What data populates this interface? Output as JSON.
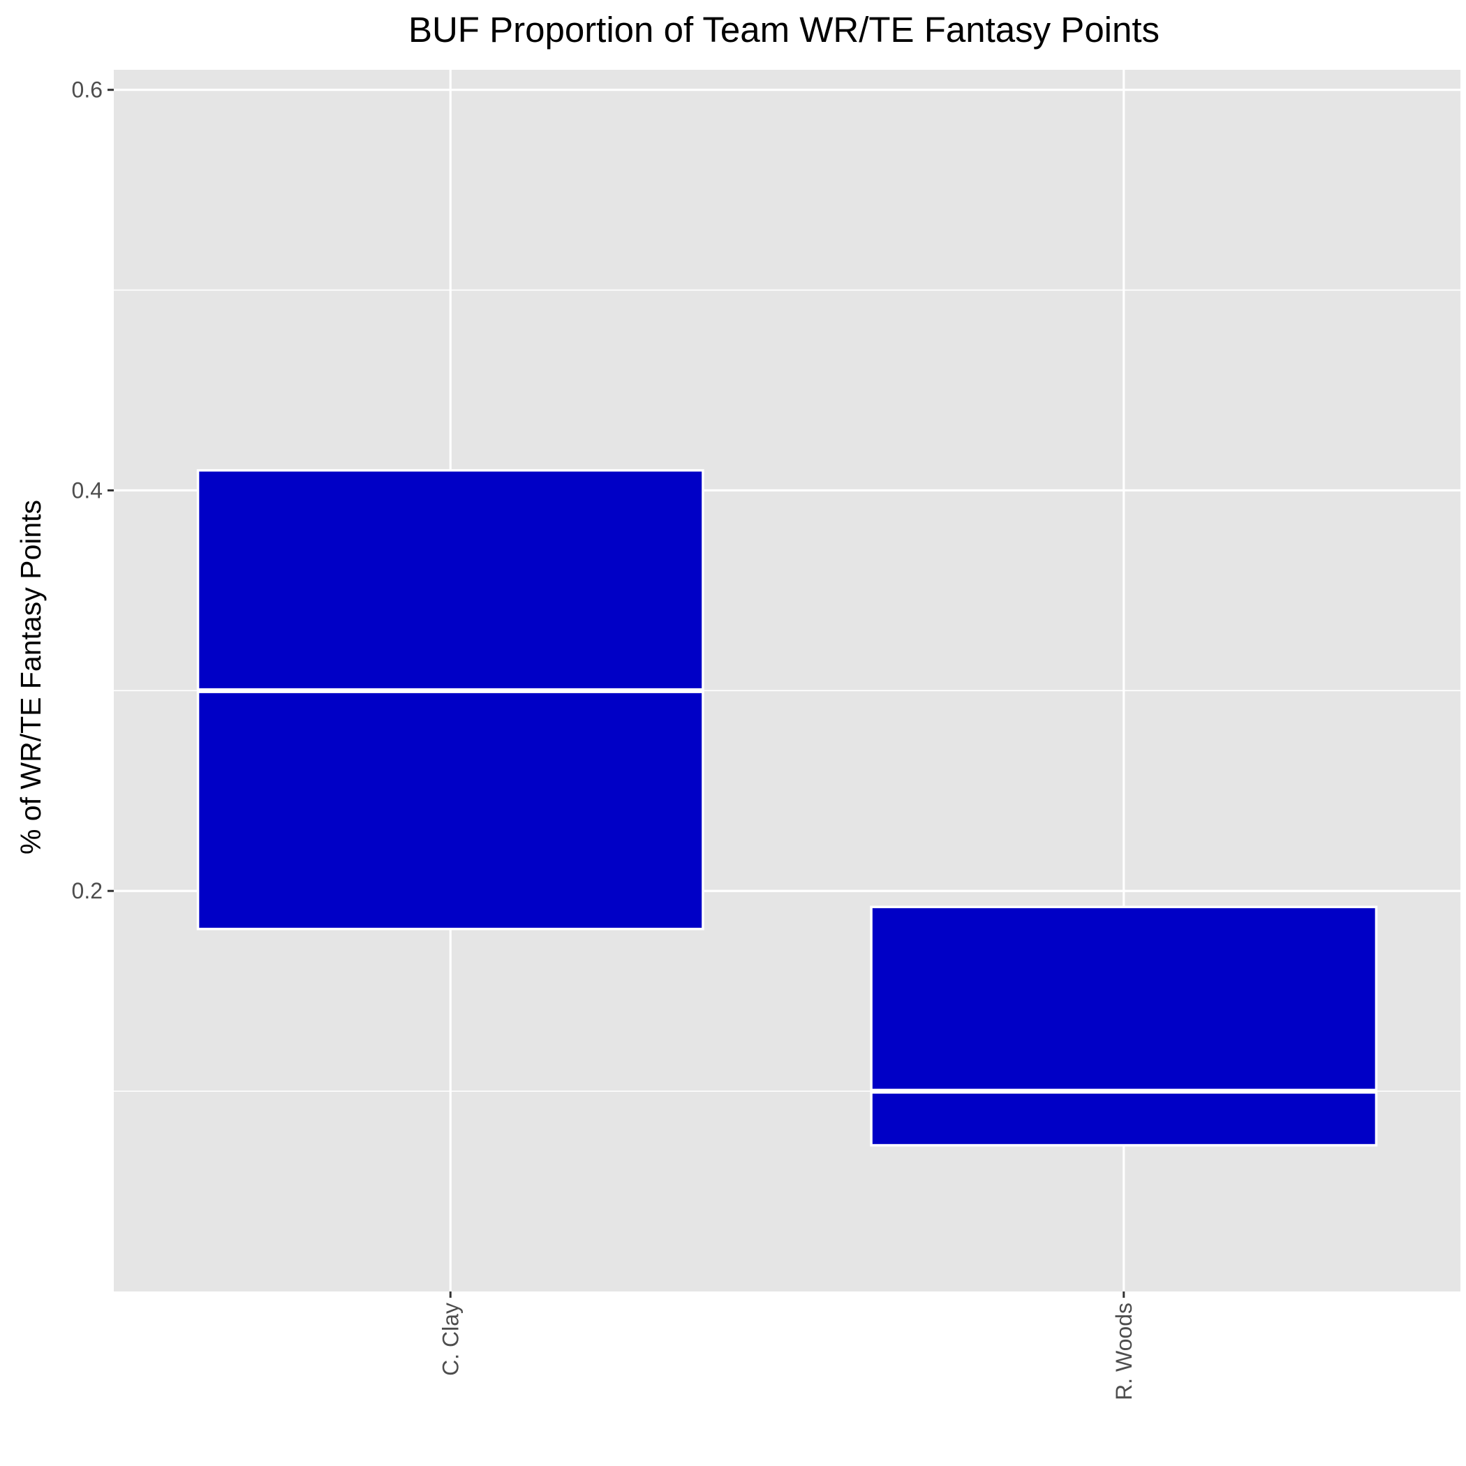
{
  "chart_data": {
    "type": "boxplot",
    "title": "BUF Proportion of Team WR/TE Fantasy Points",
    "xlabel": "",
    "ylabel": "% of WR/TE Fantasy Points",
    "ylim": [
      0.0,
      0.61
    ],
    "yticks": [
      0.2,
      0.4,
      0.6
    ],
    "ytick_labels": [
      "0.2",
      "0.4",
      "0.6"
    ],
    "categories": [
      "C. Clay",
      "R. Woods"
    ],
    "boxes": [
      {
        "category": "C. Clay",
        "q1": 0.181,
        "median": 0.3,
        "q3": 0.41
      },
      {
        "category": "R. Woods",
        "q1": 0.073,
        "median": 0.1,
        "q3": 0.192
      }
    ],
    "grid": true,
    "legend": "none",
    "colors": {
      "panel_background": "#e5e5e5",
      "grid": "#ffffff",
      "box_fill": "#0000c6",
      "box_outline": "#ffffff",
      "axis_text": "#4d4d4d",
      "tick_mark": "#333333"
    }
  }
}
